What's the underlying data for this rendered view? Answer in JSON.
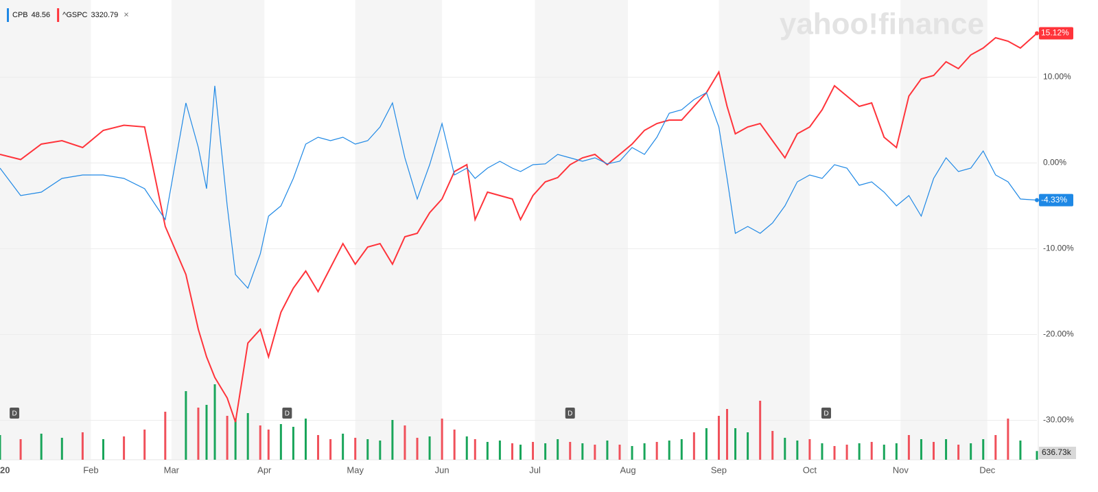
{
  "chart_data": {
    "type": "line",
    "watermark": "yahoo!finance",
    "legend": [
      {
        "symbol": "CPB",
        "price": "48.56",
        "color": "#1e88e5"
      },
      {
        "symbol": "^GSPC",
        "price": "3320.79",
        "color": "#ff333a"
      }
    ],
    "close_icon": "×",
    "xlim": [
      0,
      251
    ],
    "xticks": [
      {
        "value": 0,
        "label": "20"
      },
      {
        "value": 22,
        "label": "Feb"
      },
      {
        "value": 41.5,
        "label": "Mar"
      },
      {
        "value": 64,
        "label": "Apr"
      },
      {
        "value": 86,
        "label": "May"
      },
      {
        "value": 107,
        "label": "Jun"
      },
      {
        "value": 129.5,
        "label": "Jul"
      },
      {
        "value": 152,
        "label": "Aug"
      },
      {
        "value": 174,
        "label": "Sep"
      },
      {
        "value": 196,
        "label": "Oct"
      },
      {
        "value": 218,
        "label": "Nov"
      },
      {
        "value": 239,
        "label": "Dec"
      }
    ],
    "ylim": [
      -34.6,
      19
    ],
    "yticks": [
      {
        "value": 10,
        "label": "10.00%"
      },
      {
        "value": 0,
        "label": "0.00%"
      },
      {
        "value": -10,
        "label": "-10.00%"
      },
      {
        "value": -20,
        "label": "-20.00%"
      },
      {
        "value": -30,
        "label": "-30.00%"
      }
    ],
    "grid": true,
    "x": [
      0,
      5,
      10,
      15,
      20,
      25,
      30,
      35,
      40,
      45,
      48,
      50,
      52,
      55,
      57,
      60,
      63,
      65,
      68,
      71,
      74,
      77,
      80,
      83,
      86,
      89,
      92,
      95,
      98,
      101,
      104,
      107,
      110,
      113,
      115,
      118,
      121,
      124,
      126,
      129,
      132,
      135,
      138,
      141,
      144,
      147,
      150,
      153,
      156,
      159,
      162,
      165,
      168,
      171,
      174,
      176,
      178,
      181,
      184,
      187,
      190,
      193,
      196,
      199,
      202,
      205,
      208,
      211,
      214,
      217,
      220,
      223,
      226,
      229,
      232,
      235,
      238,
      241,
      244,
      247,
      251
    ],
    "series": [
      {
        "name": "^GSPC",
        "color": "#ff333a",
        "end_label": "15.12%",
        "values": [
          1.0,
          0.4,
          2.2,
          2.6,
          1.8,
          3.8,
          4.4,
          4.2,
          -7.4,
          -13,
          -19.4,
          -22.6,
          -25,
          -27.4,
          -30.2,
          -21,
          -19.4,
          -22.6,
          -17.4,
          -14.6,
          -12.6,
          -15,
          -12.2,
          -9.4,
          -11.8,
          -9.8,
          -9.4,
          -11.8,
          -8.6,
          -8.2,
          -5.8,
          -4.2,
          -1.0,
          -0.2,
          -6.6,
          -3.4,
          -3.8,
          -4.2,
          -6.6,
          -3.8,
          -2.2,
          -1.7,
          -0.2,
          0.6,
          1.0,
          -0.2,
          1.0,
          2.2,
          3.8,
          4.6,
          5.0,
          5.0,
          6.6,
          8.2,
          10.6,
          6.6,
          3.4,
          4.2,
          4.6,
          2.6,
          0.6,
          3.4,
          4.2,
          6.2,
          9.0,
          7.8,
          6.6,
          7.0,
          3.0,
          1.8,
          7.8,
          9.8,
          10.2,
          11.8,
          11.0,
          12.6,
          13.4,
          14.6,
          14.2,
          13.4,
          15.12
        ]
      },
      {
        "name": "CPB",
        "color": "#1e88e5",
        "end_label": "-4.33%",
        "values": [
          -0.6,
          -3.8,
          -3.4,
          -1.8,
          -1.4,
          -1.4,
          -1.8,
          -3.0,
          -6.6,
          7.0,
          1.8,
          -3.0,
          9.0,
          -5.0,
          -13,
          -14.6,
          -10.6,
          -6.2,
          -5.0,
          -1.8,
          2.2,
          3.0,
          2.6,
          3.0,
          2.2,
          2.6,
          4.2,
          7.0,
          0.6,
          -4.2,
          -0.2,
          4.6,
          -1.4,
          -0.6,
          -1.8,
          -0.6,
          0.2,
          -0.6,
          -1.0,
          -0.2,
          -0.1,
          1.0,
          0.6,
          0.2,
          0.6,
          -0.1,
          0.2,
          1.8,
          1.0,
          3.0,
          5.8,
          6.2,
          7.4,
          8.2,
          4.2,
          -1.8,
          -8.2,
          -7.4,
          -8.2,
          -7.0,
          -5.0,
          -2.2,
          -1.4,
          -1.8,
          -0.2,
          -0.6,
          -2.6,
          -2.2,
          -3.4,
          -5.0,
          -3.8,
          -6.2,
          -1.8,
          0.6,
          -1.0,
          -0.6,
          1.4,
          -1.4,
          -2.2,
          -4.2,
          -4.33
        ]
      }
    ],
    "volume": {
      "vlim": [
        0,
        10000
      ],
      "values": [
        1800,
        1500,
        1900,
        1600,
        2000,
        1500,
        1700,
        2200,
        3500,
        5000,
        3800,
        4000,
        5500,
        3200,
        3000,
        3400,
        2500,
        2200,
        2600,
        2400,
        3000,
        1800,
        1500,
        1900,
        1600,
        1500,
        1400,
        2900,
        2500,
        1600,
        1700,
        3000,
        2200,
        1700,
        1500,
        1300,
        1400,
        1200,
        1100,
        1300,
        1200,
        1500,
        1300,
        1200,
        1100,
        1400,
        1100,
        1000,
        1200,
        1300,
        1400,
        1500,
        2000,
        2300,
        3200,
        3700,
        2300,
        2000,
        4300,
        2100,
        1600,
        1400,
        1500,
        1200,
        1000,
        1100,
        1200,
        1300,
        1100,
        1200,
        1800,
        1500,
        1300,
        1500,
        1100,
        1200,
        1500,
        1800,
        3000,
        1400,
        636.73
      ],
      "colors": [
        "#19a55a",
        "#f0505a",
        "#19a55a",
        "#19a55a",
        "#f0505a",
        "#19a55a",
        "#f0505a",
        "#f0505a",
        "#f0505a",
        "#19a55a",
        "#f0505a",
        "#19a55a",
        "#19a55a",
        "#f0505a",
        "#19a55a",
        "#19a55a",
        "#f0505a",
        "#f0505a",
        "#19a55a",
        "#19a55a",
        "#19a55a",
        "#f0505a",
        "#f0505a",
        "#19a55a",
        "#f0505a",
        "#19a55a",
        "#19a55a",
        "#19a55a",
        "#f0505a",
        "#f0505a",
        "#19a55a",
        "#f0505a",
        "#f0505a",
        "#19a55a",
        "#f0505a",
        "#19a55a",
        "#19a55a",
        "#f0505a",
        "#19a55a",
        "#f0505a",
        "#19a55a",
        "#19a55a",
        "#f0505a",
        "#19a55a",
        "#f0505a",
        "#19a55a",
        "#f0505a",
        "#19a55a",
        "#19a55a",
        "#f0505a",
        "#19a55a",
        "#19a55a",
        "#f0505a",
        "#19a55a",
        "#f0505a",
        "#f0505a",
        "#19a55a",
        "#19a55a",
        "#f0505a",
        "#f0505a",
        "#19a55a",
        "#19a55a",
        "#f0505a",
        "#19a55a",
        "#f0505a",
        "#f0505a",
        "#19a55a",
        "#f0505a",
        "#19a55a",
        "#19a55a",
        "#f0505a",
        "#19a55a",
        "#f0505a",
        "#19a55a",
        "#f0505a",
        "#19a55a",
        "#19a55a",
        "#f0505a",
        "#f0505a",
        "#19a55a",
        "#19a55a"
      ],
      "last_label": "636.73k"
    },
    "dividends": {
      "label": "D",
      "x": [
        3.5,
        69.5,
        138,
        200
      ]
    }
  }
}
